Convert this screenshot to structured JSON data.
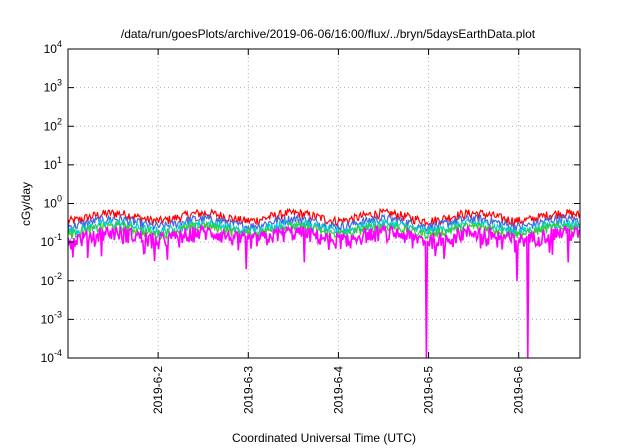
{
  "chart_data": {
    "type": "line",
    "title": "/data/run/goesPlots/archive/2019-06-06/16:00/flux/../bryn/5daysEarthData.plot",
    "xlabel": "Coordinated Universal Time (UTC)",
    "ylabel": "cGy/day",
    "yscale": "log",
    "ylim": [
      0.0001,
      10000
    ],
    "xlim_days": [
      0.0,
      5.68
    ],
    "y_ticks": [
      {
        "base": "10",
        "exp": "-4",
        "value": 0.0001
      },
      {
        "base": "10",
        "exp": "-3",
        "value": 0.001
      },
      {
        "base": "10",
        "exp": "-2",
        "value": 0.01
      },
      {
        "base": "10",
        "exp": "-1",
        "value": 0.1
      },
      {
        "base": "10",
        "exp": "0",
        "value": 1
      },
      {
        "base": "10",
        "exp": "1",
        "value": 10
      },
      {
        "base": "10",
        "exp": "2",
        "value": 100
      },
      {
        "base": "10",
        "exp": "3",
        "value": 1000
      },
      {
        "base": "10",
        "exp": "4",
        "value": 10000
      }
    ],
    "x_ticks": [
      {
        "label": "2019-6-2",
        "day": 1.0
      },
      {
        "label": "2019-6-3",
        "day": 2.0
      },
      {
        "label": "2019-6-4",
        "day": 3.0
      },
      {
        "label": "2019-6-5",
        "day": 4.0
      },
      {
        "label": "2019-6-6",
        "day": 5.0
      }
    ],
    "grid": true,
    "series": [
      {
        "color": "#ff0000",
        "level": 0.46
      },
      {
        "color": "#4169e1",
        "level": 0.33
      },
      {
        "color": "#00ced1",
        "level": 0.25
      },
      {
        "color": "#32cd32",
        "level": 0.21
      },
      {
        "color": "#ff00ff",
        "level": 0.15
      }
    ],
    "dips": [
      {
        "day": 0.05,
        "value": 0.04
      },
      {
        "day": 1.98,
        "value": 0.02
      },
      {
        "day": 2.62,
        "value": 0.03
      },
      {
        "day": 3.98,
        "value": 0.0001
      },
      {
        "day": 4.98,
        "value": 0.01
      },
      {
        "day": 5.1,
        "value": 0.0001
      },
      {
        "day": 5.55,
        "value": 0.03
      }
    ]
  }
}
